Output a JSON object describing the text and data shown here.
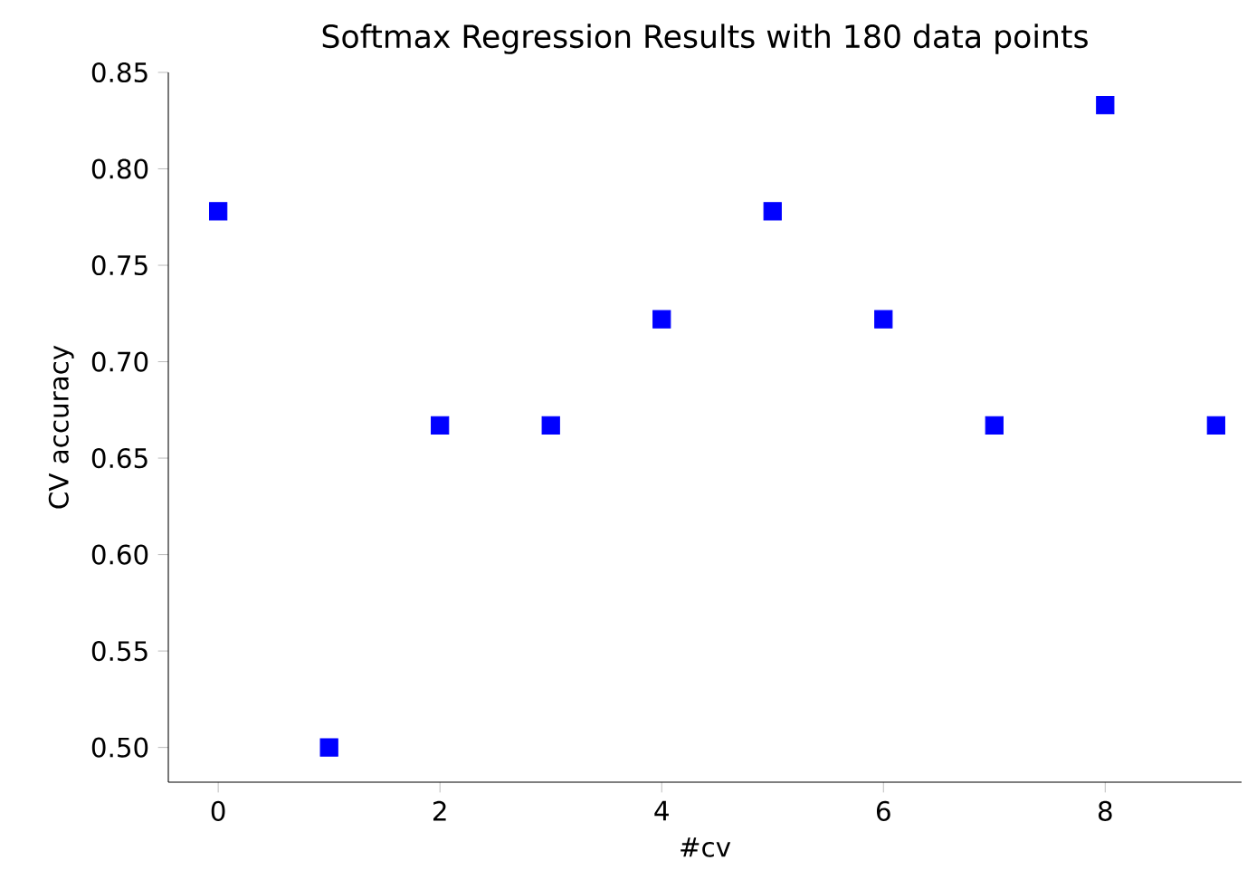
{
  "chart_data": {
    "type": "scatter",
    "title": "Softmax Regression Results with 180 data points",
    "xlabel": "#cv",
    "ylabel": "CV accuracy",
    "x": [
      0,
      1,
      2,
      3,
      4,
      5,
      6,
      7,
      8,
      9
    ],
    "series": [
      {
        "color": "#0000ff",
        "values": [
          0.778,
          0.5,
          0.667,
          0.667,
          0.722,
          0.778,
          0.722,
          0.667,
          0.833,
          0.667
        ]
      }
    ],
    "marker": "square",
    "grid": false,
    "xlim": [
      -0.45,
      9.23
    ],
    "ylim": [
      0.482,
      0.85
    ],
    "xticks": [
      0,
      2,
      4,
      6,
      8
    ],
    "yticks": [
      {
        "value": 0.5,
        "label": "0.50"
      },
      0.55,
      {
        "value": 0.6,
        "label": "0.60"
      },
      0.65,
      {
        "value": 0.7,
        "label": "0.70"
      },
      0.75,
      {
        "value": 0.8,
        "label": "0.80"
      },
      0.85
    ]
  }
}
